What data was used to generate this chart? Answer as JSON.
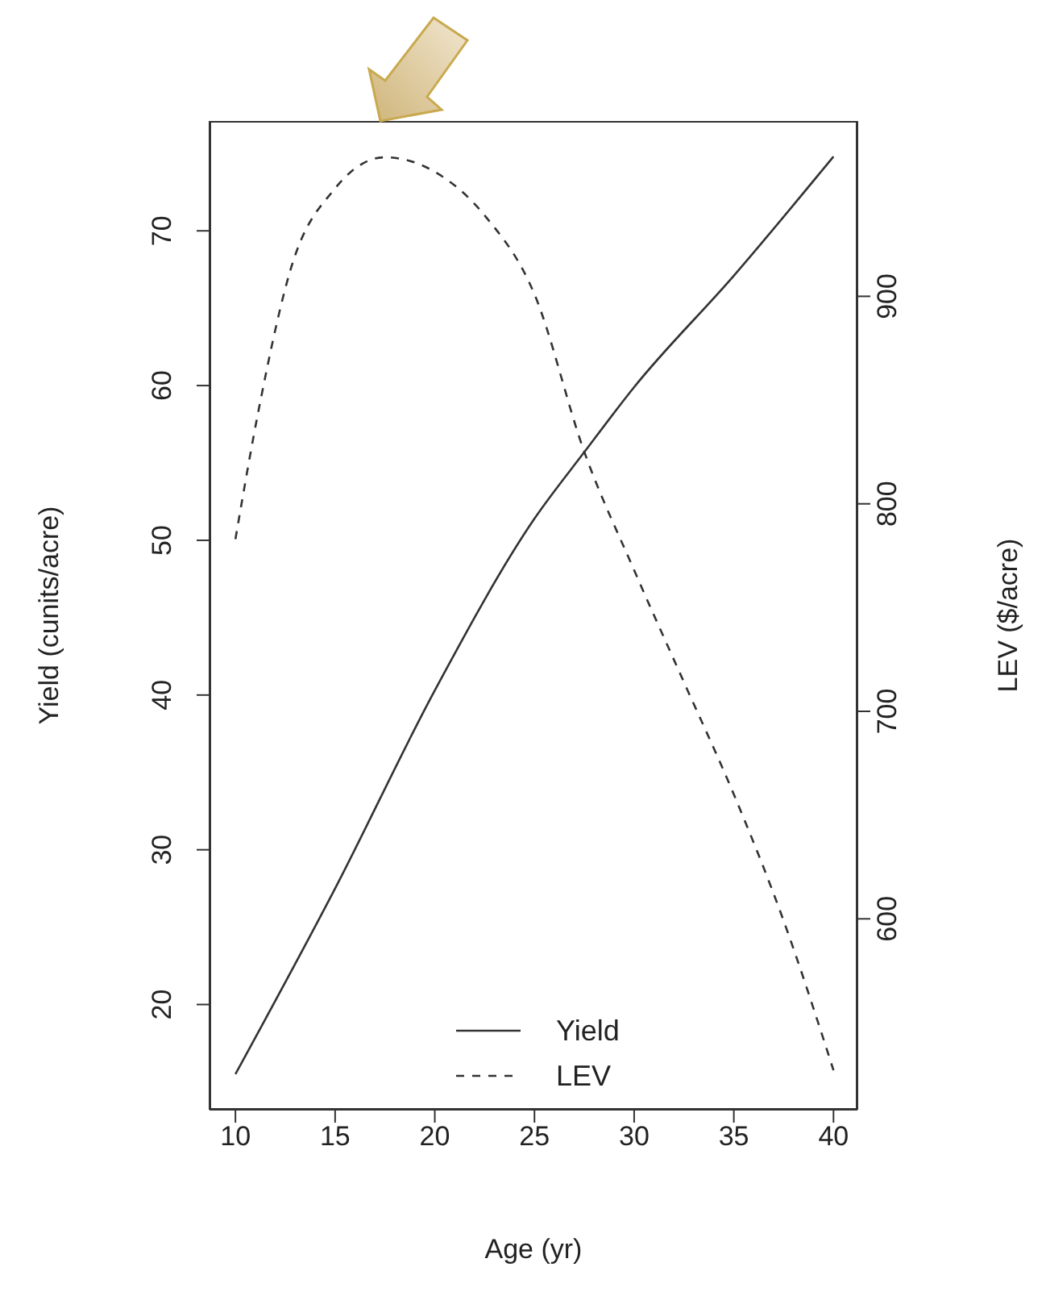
{
  "chart_data": {
    "type": "line",
    "xlabel": "Age (yr)",
    "ylabel": "Yield (cunits/acre)",
    "y2label": "LEV ($/acre)",
    "x": [
      10,
      11.2,
      12.8,
      15,
      17.5,
      20,
      22.5,
      25,
      27.5,
      30,
      32.5,
      35,
      37.5,
      40
    ],
    "series": [
      {
        "name": "Yield",
        "color": "#333333",
        "line_style": "solid",
        "x": [
          10,
          15,
          20,
          25,
          27.5,
          30,
          35,
          40
        ],
        "values": [
          15.5,
          27.5,
          40.3,
          51.4,
          55.7,
          59.9,
          67.1,
          74.8
        ]
      },
      {
        "name": "LEV",
        "color": "#333333",
        "line_style": "dashed",
        "axis": "y2",
        "values": [
          783,
          847,
          914,
          952,
          967,
          960,
          939,
          901,
          825,
          768,
          714,
          660,
          599,
          527
        ]
      }
    ],
    "xlim": [
      8.7,
      41.2
    ],
    "xticks": [
      10,
      15,
      20,
      25,
      30,
      35,
      40
    ],
    "ylim": [
      13.2,
      77.1
    ],
    "yticks": [
      20,
      30,
      40,
      50,
      60,
      70
    ],
    "y2lim": [
      508,
      984.5
    ],
    "y2ticks": [
      600,
      700,
      800,
      900
    ],
    "legend": "bottom",
    "marker": "none"
  }
}
